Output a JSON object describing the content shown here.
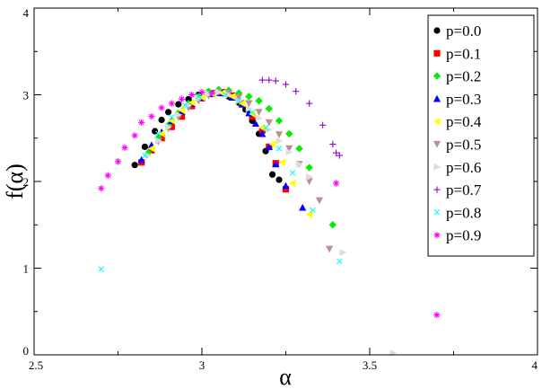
{
  "chart_data": {
    "type": "scatter",
    "title": "",
    "xlabel": "α",
    "ylabel": "f(α)",
    "xlim": [
      2.5,
      4
    ],
    "ylim": [
      0,
      4
    ],
    "xticks": [
      "2.5",
      "3",
      "3.5",
      "4"
    ],
    "yticks": [
      "0",
      "1",
      "2",
      "3",
      "4"
    ],
    "xtick_values": [
      2.5,
      3,
      3.5,
      4
    ],
    "ytick_values": [
      0,
      1,
      2,
      3,
      4
    ],
    "grid": false,
    "legend_position": "top-right",
    "series": [
      {
        "name": "p=0.0",
        "marker": "circle",
        "color": "#000000",
        "x": [
          2.8,
          2.83,
          2.86,
          2.88,
          2.9,
          2.93,
          2.96,
          2.99,
          3.02,
          3.05,
          3.08,
          3.11,
          3.13,
          3.15,
          3.17,
          3.19,
          3.21,
          3.23
        ],
        "y": [
          2.19,
          2.4,
          2.58,
          2.71,
          2.8,
          2.89,
          2.95,
          3.0,
          3.03,
          3.02,
          2.98,
          2.91,
          2.83,
          2.7,
          2.55,
          2.35,
          2.08,
          2.02
        ]
      },
      {
        "name": "p=0.1",
        "marker": "square",
        "color": "#ff0000",
        "x": [
          2.82,
          2.85,
          2.88,
          2.91,
          2.94,
          2.97,
          3.0,
          3.03,
          3.06,
          3.09,
          3.12,
          3.15,
          3.18,
          3.2,
          3.22,
          3.25
        ],
        "y": [
          2.22,
          2.36,
          2.5,
          2.63,
          2.75,
          2.87,
          2.96,
          3.02,
          3.03,
          2.99,
          2.9,
          2.75,
          2.59,
          2.4,
          2.21,
          1.91
        ]
      },
      {
        "name": "p=0.2",
        "marker": "diamond",
        "color": "#00ee00",
        "x": [
          2.84,
          2.87,
          2.9,
          2.93,
          2.96,
          2.99,
          3.02,
          3.05,
          3.08,
          3.11,
          3.14,
          3.17,
          3.2,
          3.23,
          3.26,
          3.29,
          3.32,
          3.39
        ],
        "y": [
          2.33,
          2.5,
          2.65,
          2.79,
          2.9,
          2.98,
          3.04,
          3.06,
          3.05,
          3.02,
          2.98,
          2.93,
          2.84,
          2.7,
          2.55,
          2.38,
          2.16,
          1.5
        ]
      },
      {
        "name": "p=0.3",
        "marker": "triangle-up",
        "color": "#0000ff",
        "x": [
          2.82,
          2.85,
          2.88,
          2.91,
          2.94,
          2.97,
          3.0,
          3.03,
          3.06,
          3.09,
          3.12,
          3.14,
          3.16,
          3.18,
          3.2,
          3.22,
          3.25,
          3.3
        ],
        "y": [
          2.25,
          2.42,
          2.57,
          2.7,
          2.81,
          2.9,
          2.97,
          3.01,
          3.02,
          2.97,
          2.89,
          2.79,
          2.67,
          2.55,
          2.4,
          2.2,
          1.95,
          1.7
        ]
      },
      {
        "name": "p=0.4",
        "marker": "triangle-left",
        "color": "#ffff00",
        "x": [
          2.85,
          2.88,
          2.91,
          2.94,
          2.97,
          3.0,
          3.03,
          3.06,
          3.09,
          3.12,
          3.15,
          3.18,
          3.21,
          3.24,
          3.27,
          3.32
        ],
        "y": [
          2.38,
          2.55,
          2.7,
          2.82,
          2.91,
          2.97,
          3.01,
          3.02,
          2.98,
          2.9,
          2.78,
          2.62,
          2.43,
          2.22,
          1.98,
          1.62
        ]
      },
      {
        "name": "p=0.5",
        "marker": "triangle-down",
        "color": "#bc8f8f",
        "x": [
          2.87,
          2.9,
          2.93,
          2.96,
          2.99,
          3.02,
          3.05,
          3.08,
          3.11,
          3.14,
          3.17,
          3.2,
          3.23,
          3.26,
          3.29,
          3.32,
          3.35,
          3.38
        ],
        "y": [
          2.46,
          2.61,
          2.74,
          2.85,
          2.93,
          2.99,
          3.03,
          3.02,
          2.97,
          2.9,
          2.8,
          2.68,
          2.54,
          2.38,
          2.2,
          2.0,
          1.78,
          1.22
        ]
      },
      {
        "name": "p=0.6",
        "marker": "triangle-right",
        "color": "#dcdcdc",
        "x": [
          2.84,
          2.87,
          2.9,
          2.93,
          2.96,
          2.99,
          3.02,
          3.05,
          3.08,
          3.11,
          3.14,
          3.17,
          3.2,
          3.23,
          3.26,
          3.29,
          3.32,
          3.42,
          3.57
        ],
        "y": [
          2.3,
          2.47,
          2.63,
          2.77,
          2.88,
          2.96,
          3.01,
          3.03,
          3.0,
          2.93,
          2.84,
          2.73,
          2.6,
          2.47,
          2.34,
          2.2,
          2.05,
          1.18,
          0.02
        ]
      },
      {
        "name": "p=0.7",
        "marker": "plus",
        "color": "#9400d3",
        "x": [
          3.18,
          3.2,
          3.22,
          3.25,
          3.28,
          3.32,
          3.36,
          3.39,
          3.4,
          3.41
        ],
        "y": [
          3.17,
          3.17,
          3.16,
          3.12,
          3.04,
          2.9,
          2.65,
          2.43,
          2.33,
          2.3
        ]
      },
      {
        "name": "p=0.8",
        "marker": "cross",
        "color": "#00ffff",
        "x": [
          2.7,
          2.83,
          2.87,
          2.91,
          2.95,
          2.99,
          3.03,
          3.07,
          3.11,
          3.15,
          3.19,
          3.23,
          3.27,
          3.33,
          3.41
        ],
        "y": [
          0.99,
          2.3,
          2.55,
          2.74,
          2.88,
          2.98,
          3.02,
          3.0,
          2.93,
          2.8,
          2.62,
          2.38,
          2.1,
          1.67,
          1.08
        ]
      },
      {
        "name": "p=0.9",
        "marker": "asterisk",
        "color": "#ff00ff",
        "x": [
          2.7,
          2.72,
          2.75,
          2.77,
          2.8,
          2.82,
          2.85,
          2.88,
          2.91,
          2.94,
          2.97,
          3.0,
          3.03,
          3.4,
          3.7
        ],
        "y": [
          1.92,
          2.07,
          2.23,
          2.39,
          2.53,
          2.68,
          2.75,
          2.85,
          2.9,
          2.95,
          3.0,
          3.03,
          3.02,
          1.98,
          0.46
        ]
      }
    ]
  }
}
